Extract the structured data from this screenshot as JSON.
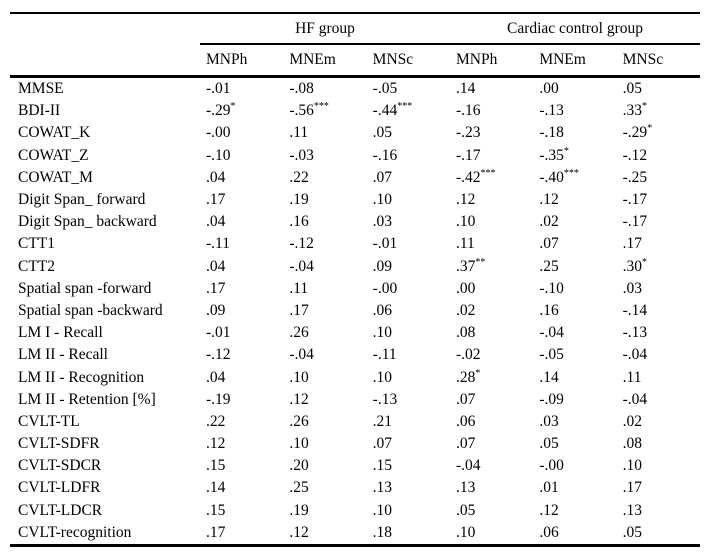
{
  "table": {
    "groups": [
      {
        "label": "HF group"
      },
      {
        "label": "Cardiac control group"
      }
    ],
    "columns": [
      "MNPh",
      "MNEm",
      "MNSc",
      "MNPh",
      "MNEm",
      "MNSc"
    ],
    "rows": [
      {
        "label": "MMSE",
        "values": [
          {
            "v": "-.01",
            "sup": ""
          },
          {
            "v": "-.08",
            "sup": ""
          },
          {
            "v": "-.05",
            "sup": ""
          },
          {
            "v": ".14",
            "sup": ""
          },
          {
            "v": ".00",
            "sup": ""
          },
          {
            "v": ".05",
            "sup": ""
          }
        ]
      },
      {
        "label": "BDI-II",
        "values": [
          {
            "v": "-.29",
            "sup": "*"
          },
          {
            "v": "-.56",
            "sup": "***"
          },
          {
            "v": "-.44",
            "sup": "***"
          },
          {
            "v": "-.16",
            "sup": ""
          },
          {
            "v": "-.13",
            "sup": ""
          },
          {
            "v": ".33",
            "sup": "*"
          }
        ]
      },
      {
        "label": "COWAT_K",
        "values": [
          {
            "v": "-.00",
            "sup": ""
          },
          {
            "v": ".11",
            "sup": ""
          },
          {
            "v": ".05",
            "sup": ""
          },
          {
            "v": "-.23",
            "sup": ""
          },
          {
            "v": "-.18",
            "sup": ""
          },
          {
            "v": "-.29",
            "sup": "*"
          }
        ]
      },
      {
        "label": "COWAT_Z",
        "values": [
          {
            "v": "-.10",
            "sup": ""
          },
          {
            "v": "-.03",
            "sup": ""
          },
          {
            "v": "-.16",
            "sup": ""
          },
          {
            "v": "-.17",
            "sup": ""
          },
          {
            "v": "-.35",
            "sup": "*"
          },
          {
            "v": "-.12",
            "sup": ""
          }
        ]
      },
      {
        "label": "COWAT_M",
        "values": [
          {
            "v": ".04",
            "sup": ""
          },
          {
            "v": ".22",
            "sup": ""
          },
          {
            "v": ".07",
            "sup": ""
          },
          {
            "v": "-.42",
            "sup": "***"
          },
          {
            "v": "-.40",
            "sup": "***"
          },
          {
            "v": "-.25",
            "sup": ""
          }
        ]
      },
      {
        "label": "Digit Span_ forward",
        "values": [
          {
            "v": ".17",
            "sup": ""
          },
          {
            "v": ".19",
            "sup": ""
          },
          {
            "v": ".10",
            "sup": ""
          },
          {
            "v": ".12",
            "sup": ""
          },
          {
            "v": ".12",
            "sup": ""
          },
          {
            "v": "-.17",
            "sup": ""
          }
        ]
      },
      {
        "label": "Digit Span_ backward",
        "values": [
          {
            "v": ".04",
            "sup": ""
          },
          {
            "v": ".16",
            "sup": ""
          },
          {
            "v": ".03",
            "sup": ""
          },
          {
            "v": ".10",
            "sup": ""
          },
          {
            "v": ".02",
            "sup": ""
          },
          {
            "v": "-.17",
            "sup": ""
          }
        ]
      },
      {
        "label": "CTT1",
        "values": [
          {
            "v": "-.11",
            "sup": ""
          },
          {
            "v": "-.12",
            "sup": ""
          },
          {
            "v": "-.01",
            "sup": ""
          },
          {
            "v": ".11",
            "sup": ""
          },
          {
            "v": ".07",
            "sup": ""
          },
          {
            "v": ".17",
            "sup": ""
          }
        ]
      },
      {
        "label": "CTT2",
        "values": [
          {
            "v": ".04",
            "sup": ""
          },
          {
            "v": "-.04",
            "sup": ""
          },
          {
            "v": ".09",
            "sup": ""
          },
          {
            "v": ".37",
            "sup": "**"
          },
          {
            "v": ".25",
            "sup": ""
          },
          {
            "v": ".30",
            "sup": "*"
          }
        ]
      },
      {
        "label": "Spatial span -forward",
        "values": [
          {
            "v": ".17",
            "sup": ""
          },
          {
            "v": ".11",
            "sup": ""
          },
          {
            "v": "-.00",
            "sup": ""
          },
          {
            "v": ".00",
            "sup": ""
          },
          {
            "v": "-.10",
            "sup": ""
          },
          {
            "v": ".03",
            "sup": ""
          }
        ]
      },
      {
        "label": "Spatial span -backward",
        "values": [
          {
            "v": ".09",
            "sup": ""
          },
          {
            "v": ".17",
            "sup": ""
          },
          {
            "v": ".06",
            "sup": ""
          },
          {
            "v": ".02",
            "sup": ""
          },
          {
            "v": ".16",
            "sup": ""
          },
          {
            "v": "-.14",
            "sup": ""
          }
        ]
      },
      {
        "label": "LM I - Recall",
        "values": [
          {
            "v": "-.01",
            "sup": ""
          },
          {
            "v": ".26",
            "sup": ""
          },
          {
            "v": ".10",
            "sup": ""
          },
          {
            "v": ".08",
            "sup": ""
          },
          {
            "v": "-.04",
            "sup": ""
          },
          {
            "v": "-.13",
            "sup": ""
          }
        ]
      },
      {
        "label": "LM II - Recall",
        "values": [
          {
            "v": "-.12",
            "sup": ""
          },
          {
            "v": "-.04",
            "sup": ""
          },
          {
            "v": "-.11",
            "sup": ""
          },
          {
            "v": "-.02",
            "sup": ""
          },
          {
            "v": "-.05",
            "sup": ""
          },
          {
            "v": "-.04",
            "sup": ""
          }
        ]
      },
      {
        "label": "LM II - Recognition",
        "values": [
          {
            "v": ".04",
            "sup": ""
          },
          {
            "v": ".10",
            "sup": ""
          },
          {
            "v": ".10",
            "sup": ""
          },
          {
            "v": ".28",
            "sup": "*"
          },
          {
            "v": ".14",
            "sup": ""
          },
          {
            "v": ".11",
            "sup": ""
          }
        ]
      },
      {
        "label": "LM II - Retention [%]",
        "values": [
          {
            "v": "-.19",
            "sup": ""
          },
          {
            "v": ".12",
            "sup": ""
          },
          {
            "v": "-.13",
            "sup": ""
          },
          {
            "v": ".07",
            "sup": ""
          },
          {
            "v": "-.09",
            "sup": ""
          },
          {
            "v": "-.04",
            "sup": ""
          }
        ]
      },
      {
        "label": "CVLT-TL",
        "values": [
          {
            "v": ".22",
            "sup": ""
          },
          {
            "v": ".26",
            "sup": ""
          },
          {
            "v": ".21",
            "sup": ""
          },
          {
            "v": ".06",
            "sup": ""
          },
          {
            "v": ".03",
            "sup": ""
          },
          {
            "v": ".02",
            "sup": ""
          }
        ]
      },
      {
        "label": "CVLT-SDFR",
        "values": [
          {
            "v": ".12",
            "sup": ""
          },
          {
            "v": ".10",
            "sup": ""
          },
          {
            "v": ".07",
            "sup": ""
          },
          {
            "v": ".07",
            "sup": ""
          },
          {
            "v": ".05",
            "sup": ""
          },
          {
            "v": ".08",
            "sup": ""
          }
        ]
      },
      {
        "label": "CVLT-SDCR",
        "values": [
          {
            "v": ".15",
            "sup": ""
          },
          {
            "v": ".20",
            "sup": ""
          },
          {
            "v": ".15",
            "sup": ""
          },
          {
            "v": "-.04",
            "sup": ""
          },
          {
            "v": "-.00",
            "sup": ""
          },
          {
            "v": ".10",
            "sup": ""
          }
        ]
      },
      {
        "label": "CVLT-LDFR",
        "values": [
          {
            "v": ".14",
            "sup": ""
          },
          {
            "v": ".25",
            "sup": ""
          },
          {
            "v": ".13",
            "sup": ""
          },
          {
            "v": ".13",
            "sup": ""
          },
          {
            "v": ".01",
            "sup": ""
          },
          {
            "v": ".17",
            "sup": ""
          }
        ]
      },
      {
        "label": "CVLT-LDCR",
        "values": [
          {
            "v": ".15",
            "sup": ""
          },
          {
            "v": ".19",
            "sup": ""
          },
          {
            "v": ".10",
            "sup": ""
          },
          {
            "v": ".05",
            "sup": ""
          },
          {
            "v": ".12",
            "sup": ""
          },
          {
            "v": ".13",
            "sup": ""
          }
        ]
      },
      {
        "label": "CVLT-recognition",
        "values": [
          {
            "v": ".17",
            "sup": ""
          },
          {
            "v": ".12",
            "sup": ""
          },
          {
            "v": ".18",
            "sup": ""
          },
          {
            "v": ".10",
            "sup": ""
          },
          {
            "v": ".06",
            "sup": ""
          },
          {
            "v": ".05",
            "sup": ""
          }
        ]
      }
    ]
  }
}
